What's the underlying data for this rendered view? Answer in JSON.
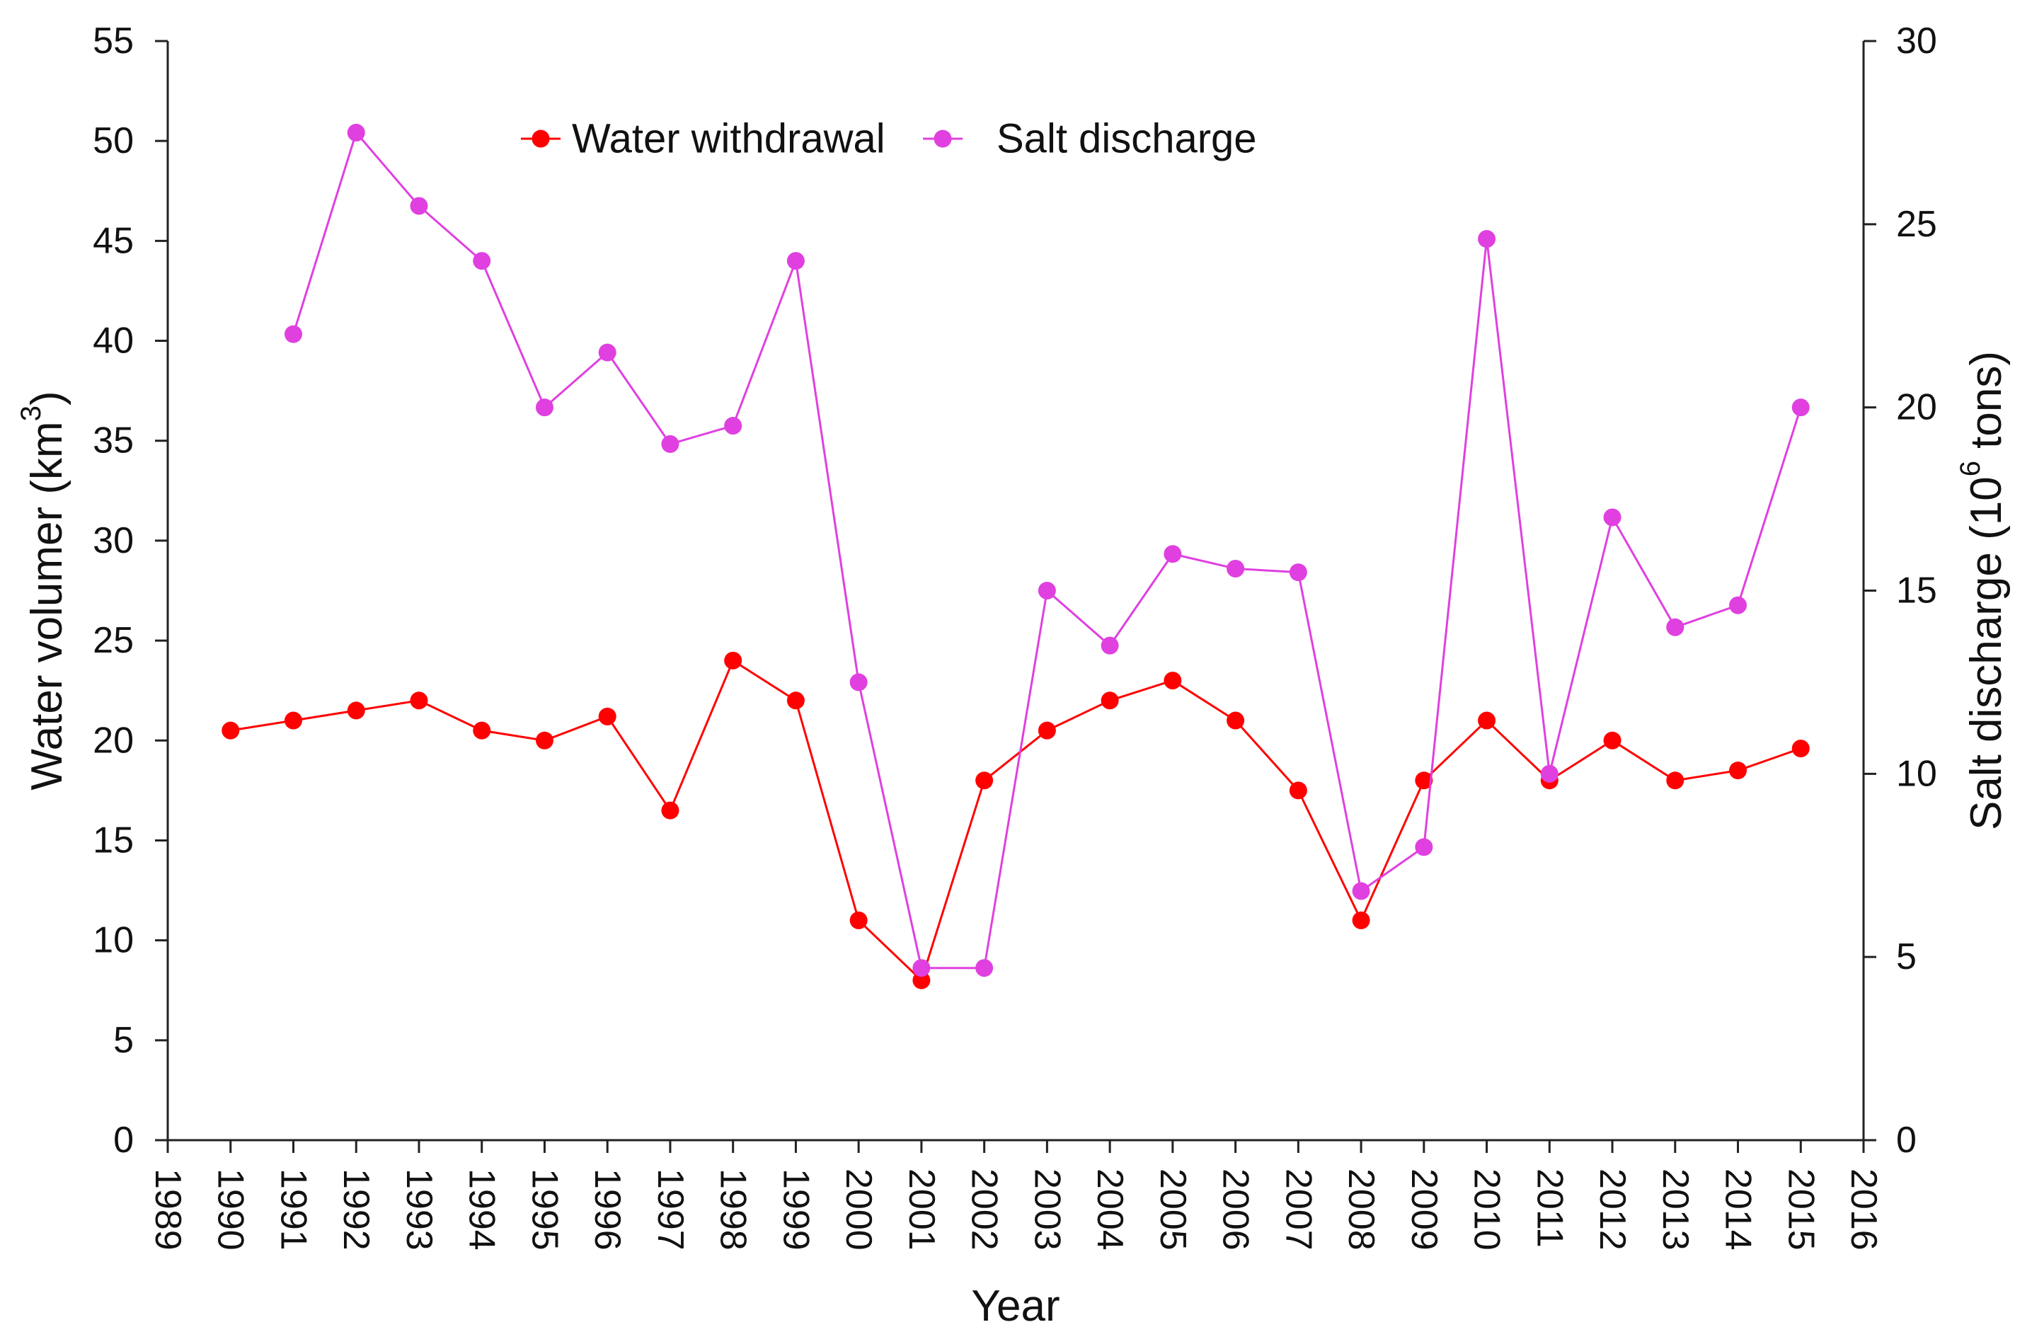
{
  "chart_data": {
    "type": "line",
    "title": "",
    "xlabel": "Year",
    "ylabel_left": {
      "main": "Water volumer (km",
      "sup": "3",
      "tail": ")"
    },
    "ylabel_right": {
      "main": "Salt discharge (10",
      "sup": "6",
      "tail": " tons)"
    },
    "xlim": [
      1989,
      2016
    ],
    "ylim_left": [
      0,
      55
    ],
    "ylim_right": [
      0,
      30
    ],
    "x_ticks": [
      1989,
      1990,
      1991,
      1992,
      1993,
      1994,
      1995,
      1996,
      1997,
      1998,
      1999,
      2000,
      2001,
      2002,
      2003,
      2004,
      2005,
      2006,
      2007,
      2008,
      2009,
      2010,
      2011,
      2012,
      2013,
      2014,
      2015,
      2016
    ],
    "y_ticks_left": [
      0,
      5,
      10,
      15,
      20,
      25,
      30,
      35,
      40,
      45,
      50,
      55
    ],
    "y_ticks_right": [
      0,
      5,
      10,
      15,
      20,
      25,
      30
    ],
    "grid": false,
    "legend_position": "top-center",
    "series": [
      {
        "name": "Water withdrawal",
        "axis": "left",
        "color": "#ff0000",
        "x": [
          1990,
          1991,
          1992,
          1993,
          1994,
          1995,
          1996,
          1997,
          1998,
          1999,
          2000,
          2001,
          2002,
          2003,
          2004,
          2005,
          2006,
          2007,
          2008,
          2009,
          2010,
          2011,
          2012,
          2013,
          2014,
          2015
        ],
        "values": [
          20.5,
          21.0,
          21.5,
          22.0,
          20.5,
          20.0,
          21.2,
          16.5,
          24.0,
          22.0,
          11.0,
          8.0,
          18.0,
          20.5,
          22.0,
          23.0,
          21.0,
          17.5,
          11.0,
          18.0,
          21.0,
          18.0,
          20.0,
          18.0,
          18.5,
          19.6
        ]
      },
      {
        "name": "Salt discharge",
        "axis": "right",
        "color": "#e040e0",
        "x": [
          1991,
          1992,
          1993,
          1994,
          1995,
          1996,
          1997,
          1998,
          1999,
          2000,
          2001,
          2002,
          2003,
          2004,
          2005,
          2006,
          2007,
          2008,
          2009,
          2010,
          2011,
          2012,
          2013,
          2014,
          2015
        ],
        "values": [
          22.0,
          27.5,
          25.5,
          24.0,
          20.0,
          21.5,
          19.0,
          19.5,
          24.0,
          12.5,
          4.7,
          4.7,
          15.0,
          13.5,
          16.0,
          15.6,
          15.5,
          6.8,
          8.0,
          24.6,
          10.0,
          17.0,
          14.0,
          14.6,
          20.0
        ]
      }
    ]
  }
}
